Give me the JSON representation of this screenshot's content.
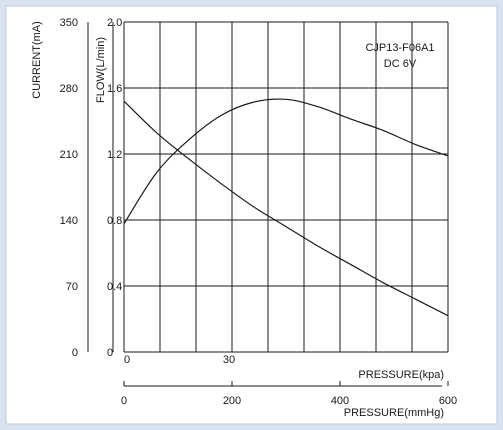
{
  "chart_data": {
    "type": "line",
    "annotation": [
      "CJP13-F06A1",
      "DC 6V"
    ],
    "xlabel": "PRESSURE(kpa)",
    "xlabel2": "PRESSURE(mmHg)",
    "ylabel_left": "CURRENT(mA)",
    "ylabel_right": "FLOW(L/min)",
    "x_mmhg_ticks": [
      "0",
      "200",
      "400",
      "600"
    ],
    "x_kpa_ticks": [
      "0",
      "30"
    ],
    "current_ticks": [
      "350",
      "280",
      "210",
      "140",
      "70",
      "0"
    ],
    "flow_ticks": [
      "2.0",
      "1.6",
      "1.2",
      "0.8",
      "0.4",
      "0"
    ],
    "xlim_mmhg": [
      0,
      600
    ],
    "current_ylim": [
      0,
      350
    ],
    "flow_ylim": [
      0,
      2.0
    ],
    "grid": true,
    "series": [
      {
        "axis": "flow",
        "x": [
          0,
          60,
          120,
          180,
          240,
          300,
          360,
          420,
          480,
          540,
          600
        ],
        "y": [
          1.52,
          1.33,
          1.17,
          1.02,
          0.88,
          0.76,
          0.64,
          0.53,
          0.42,
          0.32,
          0.22
        ]
      },
      {
        "axis": "current",
        "x": [
          0,
          60,
          120,
          180,
          240,
          300,
          360,
          420,
          480,
          540,
          600
        ],
        "y": [
          136,
          190,
          225,
          251,
          265,
          268,
          260,
          247,
          235,
          220,
          208
        ]
      }
    ]
  }
}
